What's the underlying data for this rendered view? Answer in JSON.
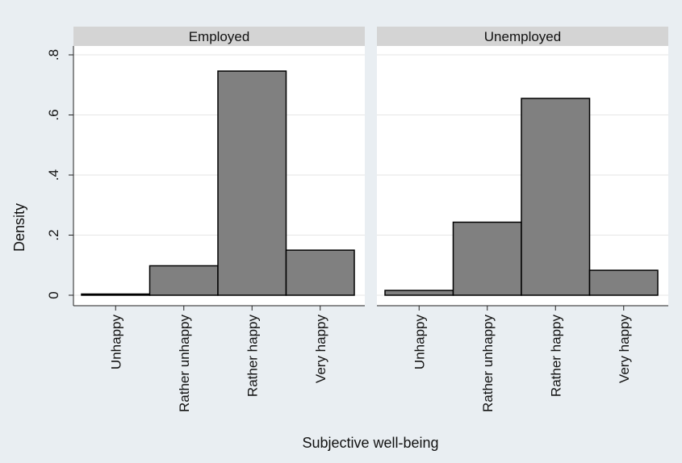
{
  "chart_data": {
    "type": "bar",
    "ylabel": "Density",
    "xlabel": "Subjective well-being",
    "ylim": [
      0,
      0.8
    ],
    "yticks": [
      {
        "value": 0,
        "label": "0"
      },
      {
        "value": 0.2,
        "label": ".2"
      },
      {
        "value": 0.4,
        "label": ".4"
      },
      {
        "value": 0.6,
        "label": ".6"
      },
      {
        "value": 0.8,
        "label": ".8"
      }
    ],
    "grid": true,
    "categories": [
      "Unhappy",
      "Rather unhappy",
      "Rather happy",
      "Very happy"
    ],
    "panels": [
      {
        "title": "Employed",
        "values": [
          0.004,
          0.098,
          0.746,
          0.15
        ]
      },
      {
        "title": "Unemployed",
        "values": [
          0.016,
          0.243,
          0.655,
          0.083
        ]
      }
    ],
    "colors": {
      "background": "#e9eef2",
      "plot": "#ffffff",
      "strip": "#d4d4d4",
      "bar": "#808080",
      "bar_edge": "#000000",
      "grid": "#e6e6e6"
    }
  }
}
